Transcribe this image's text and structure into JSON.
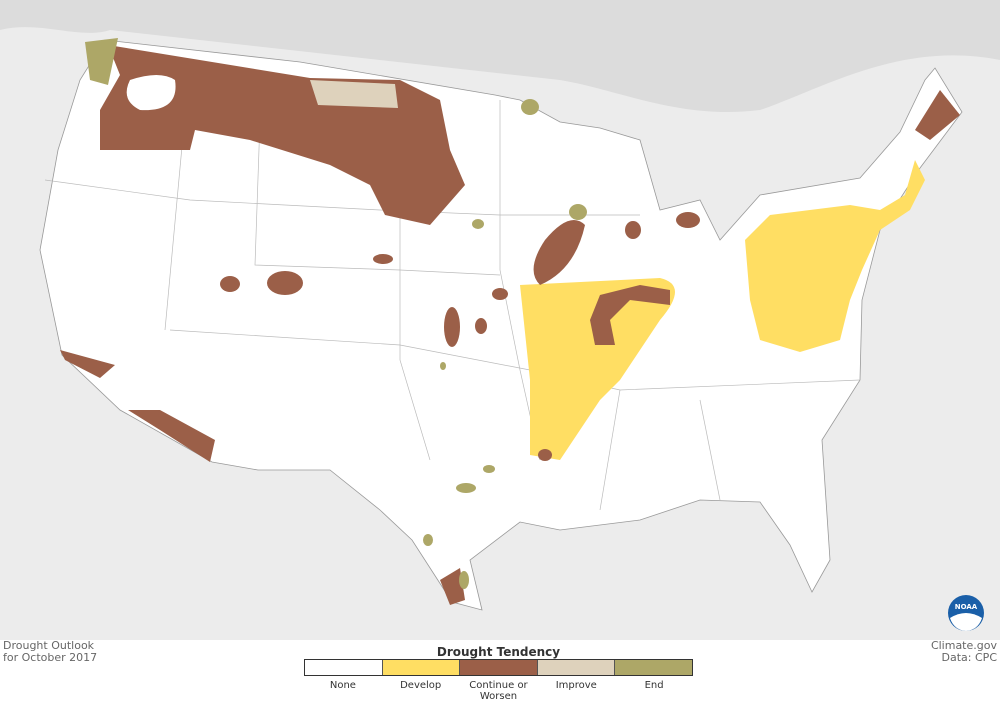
{
  "map": {
    "title_line1": "Drought Outlook",
    "title_line2": "for October 2017",
    "credit_line1": "Climate.gov",
    "credit_line2": "Data: CPC",
    "logo": "NOAA"
  },
  "legend": {
    "title": "Drought Tendency",
    "items": [
      {
        "label": "None",
        "color": "#ffffff"
      },
      {
        "label": "Develop",
        "color": "#ffde63"
      },
      {
        "label": "Continue or Worsen",
        "color": "#9b5f48"
      },
      {
        "label": "Improve",
        "color": "#ded2bc"
      },
      {
        "label": "End",
        "color": "#ada767"
      }
    ]
  }
}
